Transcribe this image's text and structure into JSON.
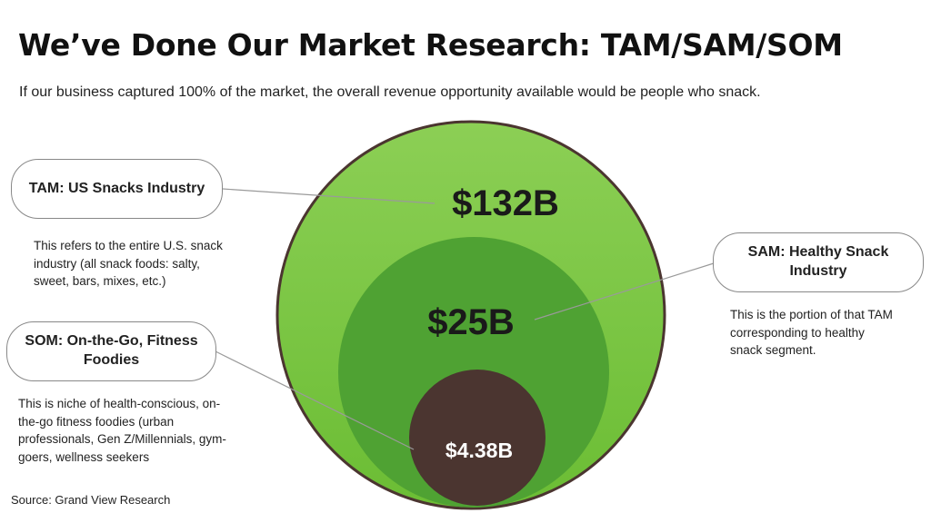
{
  "header": {
    "title": "We’ve Done Our Market Research: TAM/SAM/SOM",
    "subtitle": "If our business captured 100% of the market, the overall revenue opportunity available would be people who snack."
  },
  "tam": {
    "label": "TAM: US Snacks Industry",
    "value": "$132B",
    "description": "This refers to the entire U.S. snack industry (all snack foods: salty, sweet, bars, mixes, etc.)",
    "color": "#7dc442"
  },
  "sam": {
    "label": "SAM: Healthy Snack Industry",
    "value": "$25B",
    "description": "This is the portion of that TAM corresponding to healthy snack segment.",
    "color": "#4fa233"
  },
  "som": {
    "label": "SOM: On-the-Go, Fitness Foodies",
    "value": "$4.38B",
    "description": "This is niche of health-conscious, on-the-go fitness foodies (urban professionals, Gen Z/Millennials, gym-goers, wellness seekers",
    "color": "#4b3530"
  },
  "footer": {
    "source": "Source: Grand View Research"
  }
}
